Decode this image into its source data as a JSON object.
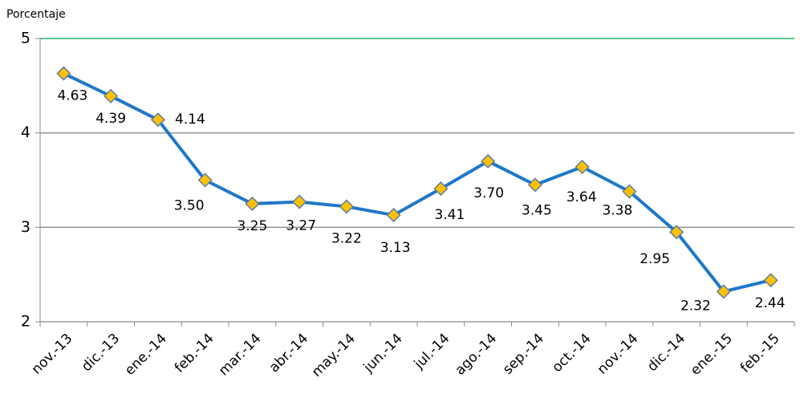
{
  "chart_data": {
    "type": "line",
    "y_axis_label": "Porcentaje",
    "categories": [
      "nov.-13",
      "dic.-13",
      "ene.-14",
      "feb.-14",
      "mar.-14",
      "abr.-14",
      "may.-14",
      "jun.-14",
      "jul.-14",
      "ago.-14",
      "sep.-14",
      "oct.-14",
      "nov.-14",
      "dic.-14",
      "ene.-15",
      "feb.-15"
    ],
    "values": [
      4.63,
      4.39,
      4.14,
      3.5,
      3.25,
      3.27,
      3.22,
      3.13,
      3.41,
      3.7,
      3.45,
      3.64,
      3.38,
      2.95,
      2.32,
      2.44
    ],
    "value_labels": [
      "4.63",
      "4.39",
      "4.14",
      "3.50",
      "3.25",
      "3.27",
      "3.22",
      "3.13",
      "3.41",
      "3.70",
      "3.45",
      "3.64",
      "3.38",
      "2.95",
      "2.32",
      "2.44"
    ],
    "color": "#1f77c9",
    "marker_color": "#ffc000",
    "ylim": [
      2,
      5
    ],
    "yticks": [
      2,
      3,
      4,
      5
    ],
    "grid": true
  }
}
